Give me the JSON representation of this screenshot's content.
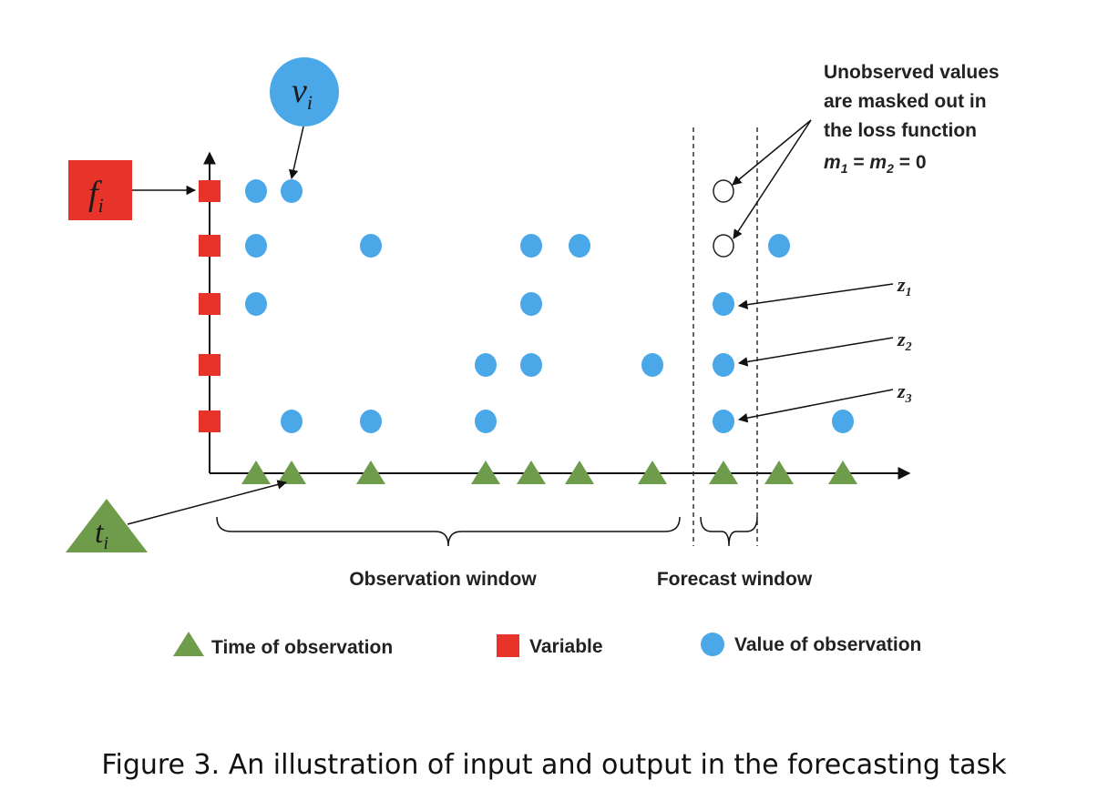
{
  "callouts": {
    "f_main": "f",
    "f_sub": "i",
    "v_main": "v",
    "v_sub": "i",
    "t_main": "t",
    "t_sub": "i"
  },
  "annotation": {
    "line1": "Unobserved values",
    "line2": "are masked out in",
    "line3": "the loss function",
    "eq_m1": "m",
    "eq_m1_sub": "1",
    "eq_mid": " = ",
    "eq_m2": "m",
    "eq_m2_sub": "2",
    "eq_end": " = 0"
  },
  "z_labels": [
    {
      "main": "z",
      "sub": "1"
    },
    {
      "main": "z",
      "sub": "2"
    },
    {
      "main": "z",
      "sub": "3"
    }
  ],
  "windows": {
    "observation": "Observation window",
    "forecast": "Forecast window"
  },
  "legend": {
    "time": "Time of observation",
    "variable": "Variable",
    "value": "Value of observation"
  },
  "caption": "Figure 3. An illustration of input and output in the forecasting task",
  "grid": {
    "num_variables": 5,
    "time_columns": [
      0,
      1,
      2,
      3,
      4,
      5,
      6,
      7,
      8,
      9
    ],
    "forecast_column": 7,
    "observations": [
      {
        "var": 0,
        "col": 0
      },
      {
        "var": 0,
        "col": 1
      },
      {
        "var": 1,
        "col": 0
      },
      {
        "var": 1,
        "col": 2
      },
      {
        "var": 1,
        "col": 4
      },
      {
        "var": 1,
        "col": 5
      },
      {
        "var": 1,
        "col": 8
      },
      {
        "var": 2,
        "col": 0
      },
      {
        "var": 2,
        "col": 4
      },
      {
        "var": 2,
        "col": 7
      },
      {
        "var": 3,
        "col": 3
      },
      {
        "var": 3,
        "col": 4
      },
      {
        "var": 3,
        "col": 6
      },
      {
        "var": 3,
        "col": 7
      },
      {
        "var": 4,
        "col": 1
      },
      {
        "var": 4,
        "col": 2
      },
      {
        "var": 4,
        "col": 3
      },
      {
        "var": 4,
        "col": 7
      },
      {
        "var": 4,
        "col": 9
      }
    ],
    "masked": [
      {
        "var": 0,
        "col": 7
      },
      {
        "var": 1,
        "col": 7
      }
    ]
  },
  "colors": {
    "variable": "#e8332a",
    "value": "#4aa8e8",
    "time": "#6e9c4a",
    "line": "#111111",
    "text": "#222222"
  }
}
